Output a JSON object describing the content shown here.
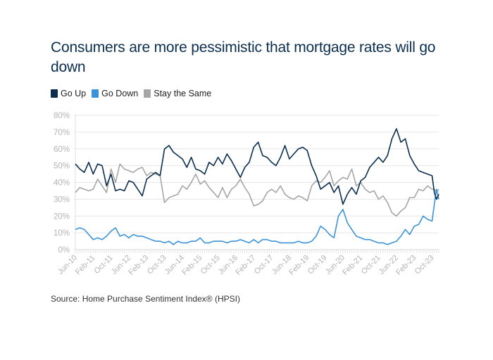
{
  "chart_data": {
    "type": "line",
    "title": "Consumers are more pessimistic that mortgage rates will go down",
    "xlabel": "",
    "ylabel": "",
    "x_unit": "months since Jun-10",
    "x_range": [
      0,
      163
    ],
    "ylim": [
      0,
      80
    ],
    "yticks": [
      "0%",
      "10%",
      "20%",
      "30%",
      "40%",
      "50%",
      "60%",
      "70%",
      "80%"
    ],
    "xticks": [
      "Jun-10",
      "Feb-11",
      "Oct-11",
      "Jun-12",
      "Feb-13",
      "Oct-13",
      "Jun-14",
      "Feb-15",
      "Oct-15",
      "Jun-16",
      "Feb-17",
      "Oct-17",
      "Jun-18",
      "Feb-19",
      "Oct-19",
      "Jun-20",
      "Feb-21",
      "Oct-21",
      "Jun-22",
      "Feb-23",
      "Oct-23"
    ],
    "grid": true,
    "legend_position": "top-left",
    "x": [
      0,
      2,
      4,
      6,
      8,
      10,
      12,
      14,
      16,
      18,
      20,
      22,
      24,
      26,
      28,
      30,
      32,
      34,
      36,
      38,
      40,
      42,
      44,
      46,
      48,
      50,
      52,
      54,
      56,
      58,
      60,
      62,
      64,
      66,
      68,
      70,
      72,
      74,
      76,
      78,
      80,
      82,
      84,
      86,
      88,
      90,
      92,
      94,
      96,
      98,
      100,
      102,
      104,
      106,
      108,
      110,
      112,
      114,
      116,
      118,
      120,
      122,
      124,
      126,
      128,
      130,
      132,
      134,
      136,
      138,
      140,
      142,
      144,
      146,
      148,
      150,
      152,
      154,
      156,
      158,
      160,
      161,
      162,
      163
    ],
    "series": [
      {
        "name": "Go Up",
        "color": "#0b2e4f",
        "values": [
          51,
          48,
          46,
          52,
          45,
          51,
          50,
          38,
          45,
          35,
          36,
          35,
          41,
          40,
          36,
          32,
          42,
          44,
          46,
          44,
          60,
          62,
          58,
          56,
          54,
          49,
          55,
          48,
          47,
          45,
          52,
          50,
          55,
          51,
          57,
          53,
          48,
          43,
          49,
          52,
          61,
          64,
          56,
          55,
          52,
          50,
          55,
          62,
          54,
          57,
          60,
          61,
          59,
          50,
          44,
          36,
          38,
          40,
          34,
          38,
          27,
          33,
          37,
          33,
          41,
          43,
          49,
          52,
          55,
          52,
          56,
          66,
          72,
          64,
          66,
          56,
          51,
          47,
          46,
          45,
          44,
          34,
          30,
          33
        ]
      },
      {
        "name": "Go Down",
        "color": "#3b94d9",
        "values": [
          12,
          13,
          12,
          9,
          6,
          7,
          6,
          8,
          11,
          13,
          8,
          9,
          7,
          9,
          8,
          8,
          7,
          6,
          5,
          5,
          4,
          5,
          3,
          5,
          4,
          4,
          5,
          5,
          7,
          4,
          4,
          5,
          5,
          5,
          4,
          5,
          5,
          6,
          5,
          4,
          6,
          4,
          6,
          6,
          5,
          5,
          4,
          4,
          4,
          4,
          5,
          4,
          4,
          5,
          8,
          14,
          12,
          9,
          7,
          20,
          24,
          16,
          12,
          8,
          7,
          6,
          6,
          5,
          4,
          4,
          3,
          4,
          5,
          8,
          12,
          9,
          14,
          15,
          20,
          18,
          17,
          27,
          36,
          30
        ]
      },
      {
        "name": "Stay the Same",
        "color": "#a6a6a6",
        "values": [
          34,
          37,
          36,
          35,
          36,
          42,
          38,
          34,
          48,
          40,
          51,
          48,
          47,
          46,
          48,
          49,
          44,
          46,
          45,
          44,
          28,
          31,
          32,
          33,
          38,
          36,
          40,
          45,
          39,
          41,
          37,
          34,
          31,
          37,
          31,
          36,
          38,
          42,
          37,
          33,
          26,
          27,
          29,
          34,
          36,
          34,
          38,
          33,
          31,
          30,
          32,
          31,
          29,
          38,
          41,
          40,
          43,
          47,
          38,
          41,
          43,
          42,
          48,
          38,
          40,
          36,
          34,
          35,
          30,
          32,
          28,
          22,
          20,
          23,
          25,
          31,
          31,
          36,
          35,
          38,
          36,
          36,
          34,
          36
        ]
      }
    ],
    "source": "Source: Home Purchase Sentiment Index® (HPSI)"
  }
}
